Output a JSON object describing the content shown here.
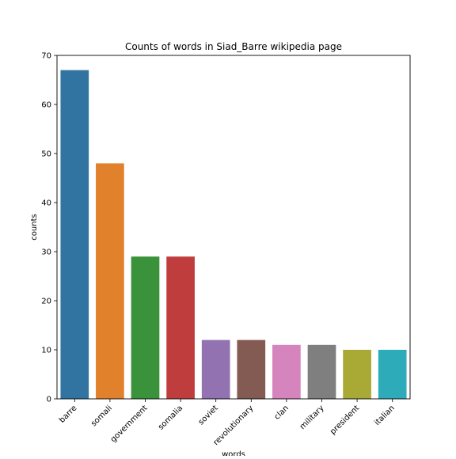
{
  "chart_data": {
    "type": "bar",
    "title": "Counts of words in Siad_Barre wikipedia page",
    "xlabel": "words",
    "ylabel": "counts",
    "ylim": [
      0,
      70
    ],
    "yticks": [
      0,
      10,
      20,
      30,
      40,
      50,
      60,
      70
    ],
    "grid": false,
    "legend": "none",
    "categories": [
      "barre",
      "somali",
      "government",
      "somalia",
      "soviet",
      "revolutionary",
      "clan",
      "military",
      "president",
      "italian"
    ],
    "values": [
      67,
      48,
      29,
      29,
      12,
      12,
      11,
      11,
      10,
      10
    ],
    "colors": [
      "#3274a1",
      "#e1812c",
      "#3a923a",
      "#c03d3e",
      "#9372b2",
      "#845b53",
      "#d684bd",
      "#7f7f7f",
      "#a9aa35",
      "#2eabb8"
    ]
  }
}
